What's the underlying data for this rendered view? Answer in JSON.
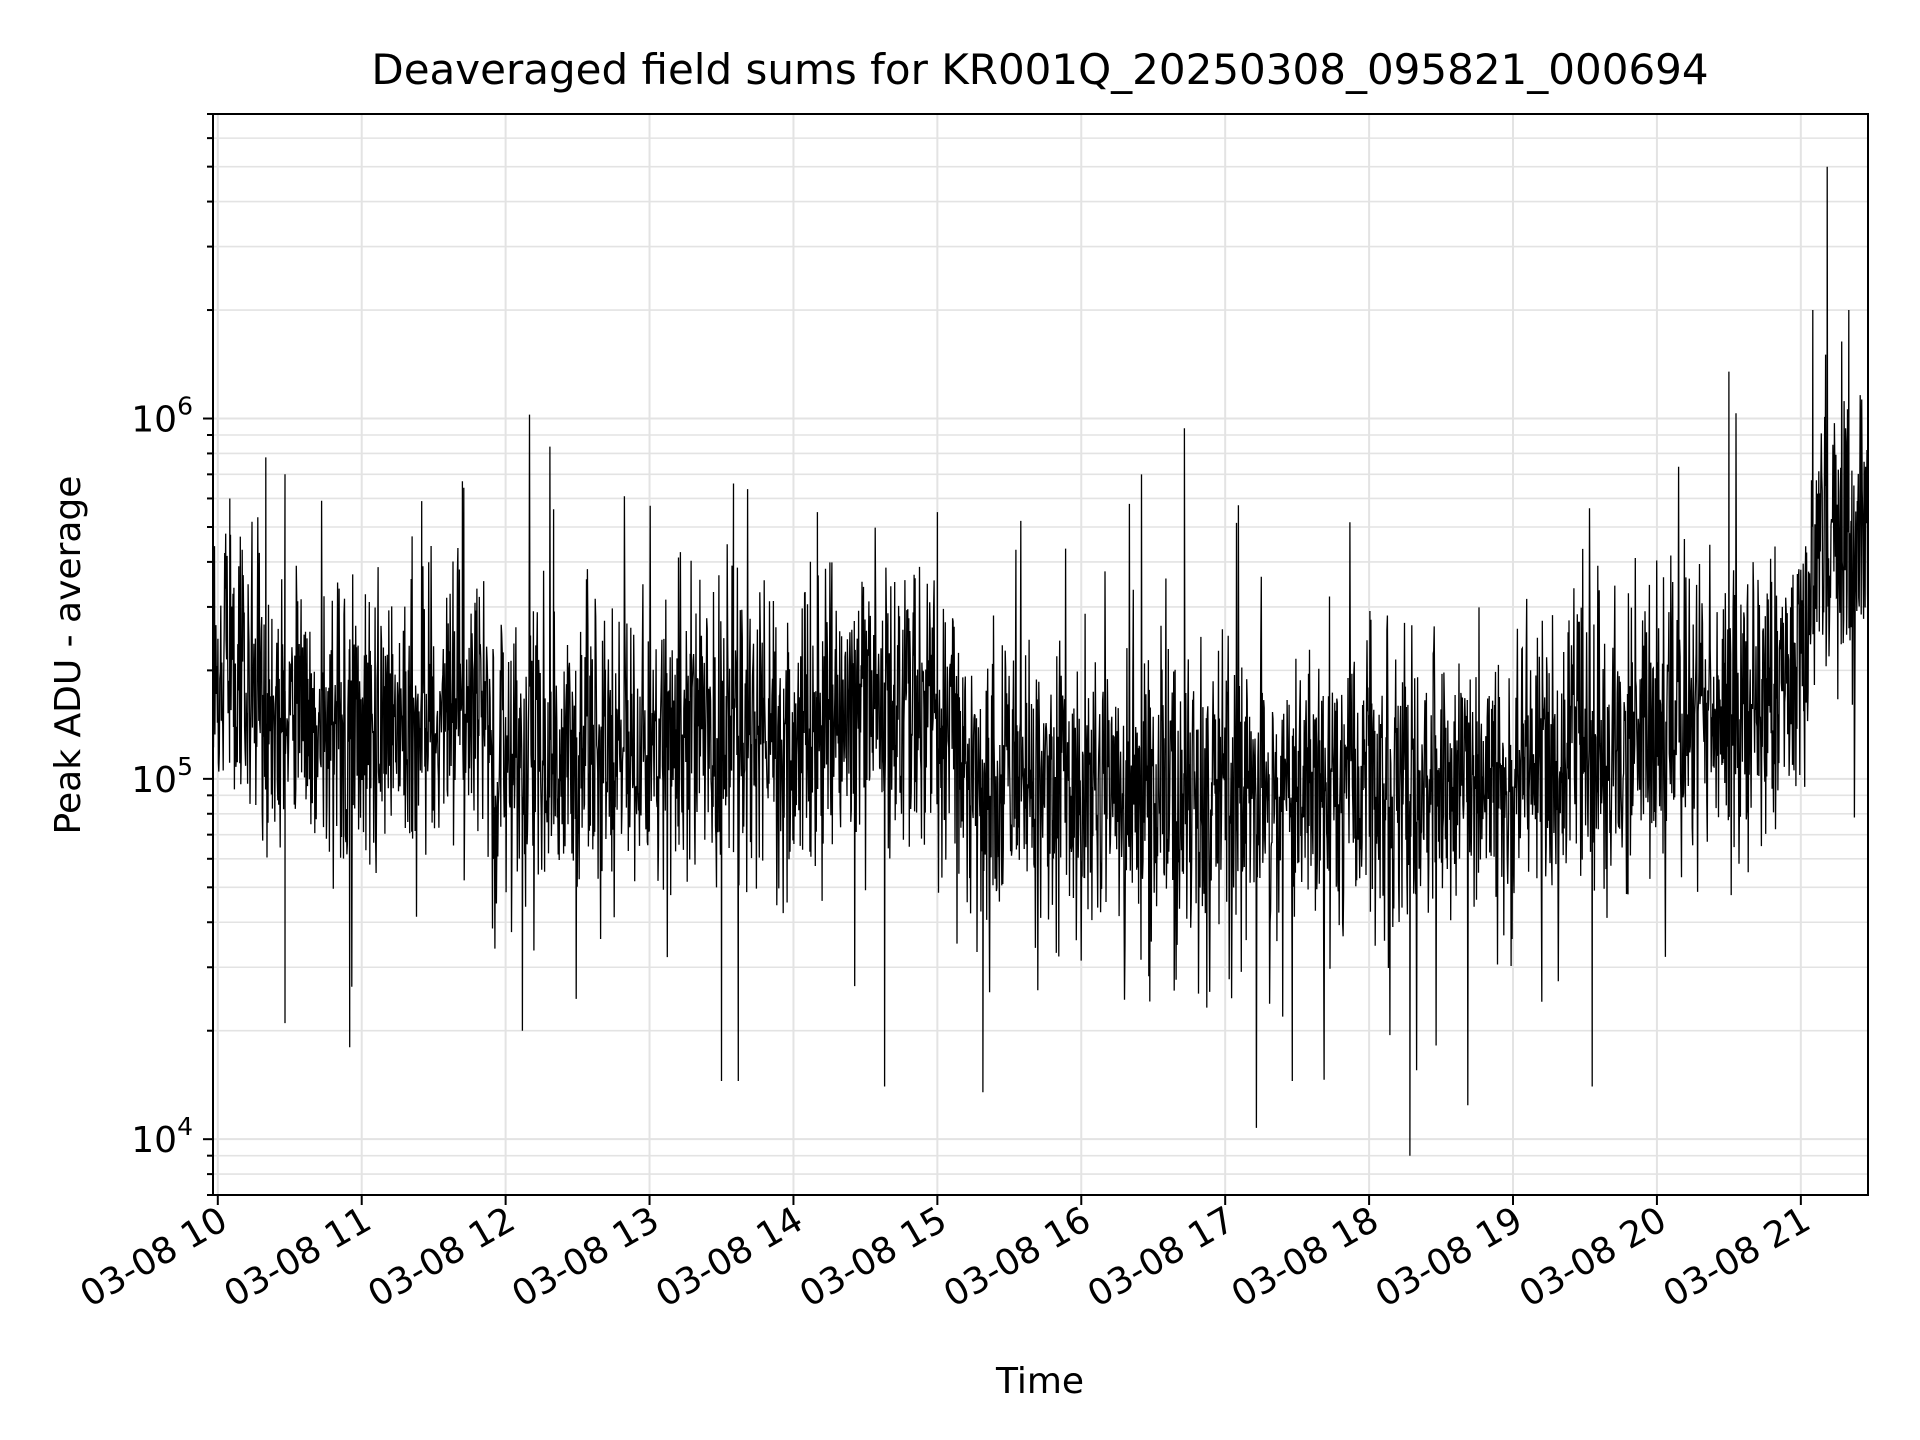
{
  "chart_data": {
    "type": "line",
    "title": "Deaveraged field sums for KR001Q_20250308_095821_000694",
    "xlabel": "Time",
    "ylabel": "Peak ADU - average",
    "x_tick_labels": [
      "03-08 10",
      "03-08 11",
      "03-08 12",
      "03-08 13",
      "03-08 14",
      "03-08 15",
      "03-08 16",
      "03-08 17",
      "03-08 18",
      "03-08 19",
      "03-08 20",
      "03-08 21"
    ],
    "x_tick_times": [
      "2025-03-08 10:00",
      "2025-03-08 11:00",
      "2025-03-08 12:00",
      "2025-03-08 13:00",
      "2025-03-08 14:00",
      "2025-03-08 15:00",
      "2025-03-08 16:00",
      "2025-03-08 17:00",
      "2025-03-08 18:00",
      "2025-03-08 19:00",
      "2025-03-08 20:00",
      "2025-03-08 21:00"
    ],
    "xlim": [
      "2025-03-08 09:58",
      "2025-03-08 21:28"
    ],
    "y_scale": "log",
    "ylim": [
      7000,
      7000000
    ],
    "y_tick_labels": [
      {
        "base": "10",
        "exp": "4",
        "value": 10000
      },
      {
        "base": "10",
        "exp": "5",
        "value": 100000
      },
      {
        "base": "10",
        "exp": "6",
        "value": 1000000
      }
    ],
    "grid": "major and minor",
    "line_color": "#000000",
    "grid_color": "#e3e3e3",
    "series": [
      {
        "trend": [
          [
            "2025-03-08 09:58",
            230000
          ],
          [
            "2025-03-08 10:15",
            180000
          ],
          [
            "2025-03-08 10:40",
            140000
          ],
          [
            "2025-03-08 11:00",
            140000
          ],
          [
            "2025-03-08 11:40",
            160000
          ],
          [
            "2025-03-08 12:00",
            110000
          ],
          [
            "2025-03-08 12:30",
            120000
          ],
          [
            "2025-03-08 13:00",
            120000
          ],
          [
            "2025-03-08 13:30",
            140000
          ],
          [
            "2025-03-08 14:00",
            130000
          ],
          [
            "2025-03-08 14:50",
            170000
          ],
          [
            "2025-03-08 15:20",
            95000
          ],
          [
            "2025-03-08 16:00",
            90000
          ],
          [
            "2025-03-08 17:00",
            88000
          ],
          [
            "2025-03-08 18:00",
            95000
          ],
          [
            "2025-03-08 18:30",
            100000
          ],
          [
            "2025-03-08 19:00",
            105000
          ],
          [
            "2025-03-08 19:40",
            110000
          ],
          [
            "2025-03-08 20:00",
            135000
          ],
          [
            "2025-03-08 20:40",
            150000
          ],
          [
            "2025-03-08 21:00",
            200000
          ],
          [
            "2025-03-08 21:10",
            480000
          ],
          [
            "2025-03-08 21:28",
            520000
          ]
        ],
        "spikes": [
          [
            "2025-03-08 10:05",
            600000
          ],
          [
            "2025-03-08 10:20",
            780000
          ],
          [
            "2025-03-08 10:28",
            700000
          ],
          [
            "2025-03-08 11:25",
            590000
          ],
          [
            "2025-03-08 11:42",
            670000
          ],
          [
            "2025-03-08 12:20",
            560000
          ],
          [
            "2025-03-08 13:35",
            660000
          ],
          [
            "2025-03-08 14:10",
            550000
          ],
          [
            "2025-03-08 15:00",
            550000
          ],
          [
            "2025-03-08 16:43",
            940000
          ],
          [
            "2025-03-08 20:30",
            1350000
          ],
          [
            "2025-03-08 21:05",
            2000000
          ],
          [
            "2025-03-08 21:11",
            5000000
          ],
          [
            "2025-03-08 21:20",
            2000000
          ],
          [
            "2025-03-08 10:28",
            21000
          ],
          [
            "2025-03-08 10:55",
            18000
          ],
          [
            "2025-03-08 12:07",
            20000
          ],
          [
            "2025-03-08 13:30",
            14500
          ],
          [
            "2025-03-08 13:37",
            14500
          ],
          [
            "2025-03-08 14:38",
            14000
          ],
          [
            "2025-03-08 15:19",
            13500
          ],
          [
            "2025-03-08 18:17",
            9000
          ],
          [
            "2025-03-08 19:33",
            14000
          ],
          [
            "2025-03-08 17:28",
            14500
          ]
        ]
      }
    ]
  }
}
